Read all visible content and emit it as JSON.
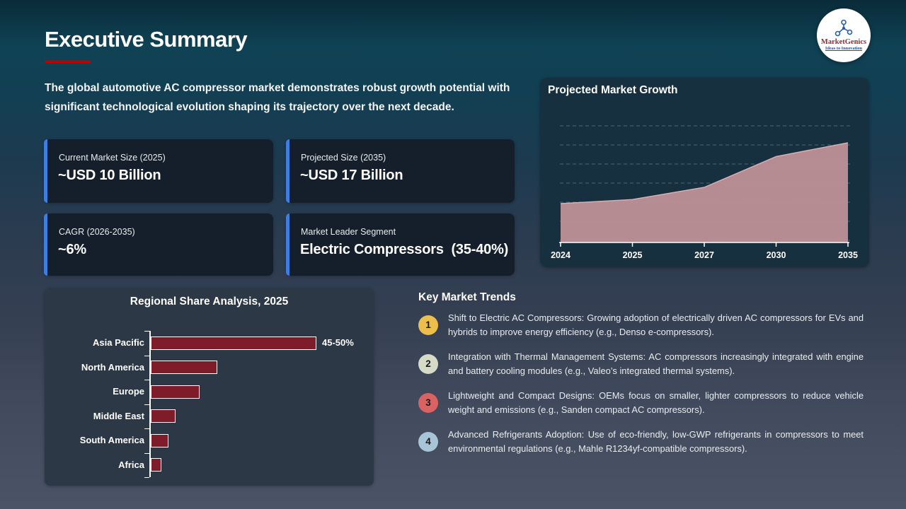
{
  "slide": {
    "title": "Executive Summary",
    "intro": "The global automotive AC compressor market demonstrates robust growth potential with significant technological evolution shaping its trajectory over the next decade."
  },
  "logo": {
    "name": "MarketGenics",
    "tagline": "Ideas to Innovation"
  },
  "colors": {
    "title_underline": "#c00000",
    "stat_card_accent": "#3f7ee0",
    "area_fill": "#c29399",
    "bar_fill": "#7e1c29"
  },
  "stat_cards": [
    {
      "label": "Current Market Size (2025)",
      "value": "~USD 10 Billion"
    },
    {
      "label": "Projected Size (2035)",
      "value": "~USD 17 Billion"
    },
    {
      "label": "CAGR (2026-2035)",
      "value": "~6%"
    },
    {
      "label": "Market Leader Segment",
      "value": "Electric Compressors  (35-40%)"
    }
  ],
  "chart_data": [
    {
      "type": "area",
      "title": "Projected Market Growth",
      "x": [
        "2024",
        "2025",
        "2027",
        "2030",
        "2035"
      ],
      "values": [
        9.5,
        10,
        11.5,
        15.3,
        17
      ],
      "ylim": [
        4.7,
        18.3
      ],
      "grid": "horizontal-dashed",
      "legend": false,
      "fill_color": "#c29399"
    },
    {
      "type": "bar",
      "title": "Regional Share Analysis, 2025",
      "orientation": "horizontal",
      "categories": [
        "Asia Pacific",
        "North America",
        "Europe",
        "Middle East",
        "South America",
        "Africa"
      ],
      "values": [
        47.5,
        19,
        14,
        7,
        5,
        3
      ],
      "data_labels": [
        "45-50%",
        "",
        "",
        "",
        "",
        ""
      ],
      "xlim": [
        0,
        55
      ],
      "grid": false,
      "legend": false,
      "bar_color": "#7e1c29"
    }
  ],
  "trends": {
    "heading": "Key Market Trends",
    "items": [
      {
        "num": "1",
        "circle_color": "#ecbf4d",
        "text": "Shift to Electric AC Compressors: Growing adoption of electrically driven AC compressors for EVs and hybrids to improve energy efficiency (e.g., Denso e-compressors)."
      },
      {
        "num": "2",
        "circle_color": "#d6dbc8",
        "text": "Integration with Thermal Management Systems: AC compressors increasingly integrated with engine and battery cooling modules (e.g., Valeo’s integrated thermal systems)."
      },
      {
        "num": "3",
        "circle_color": "#d96363",
        "text": "Lightweight and Compact Designs: OEMs focus on smaller, lighter compressors to reduce vehicle weight and emissions (e.g., Sanden compact AC compressors)."
      },
      {
        "num": "4",
        "circle_color": "#a8c5d8",
        "text": "Advanced Refrigerants Adoption: Use of eco-friendly, low-GWP refrigerants in compressors to meet environmental regulations (e.g., Mahle R1234yf-compatible compressors)."
      }
    ]
  }
}
